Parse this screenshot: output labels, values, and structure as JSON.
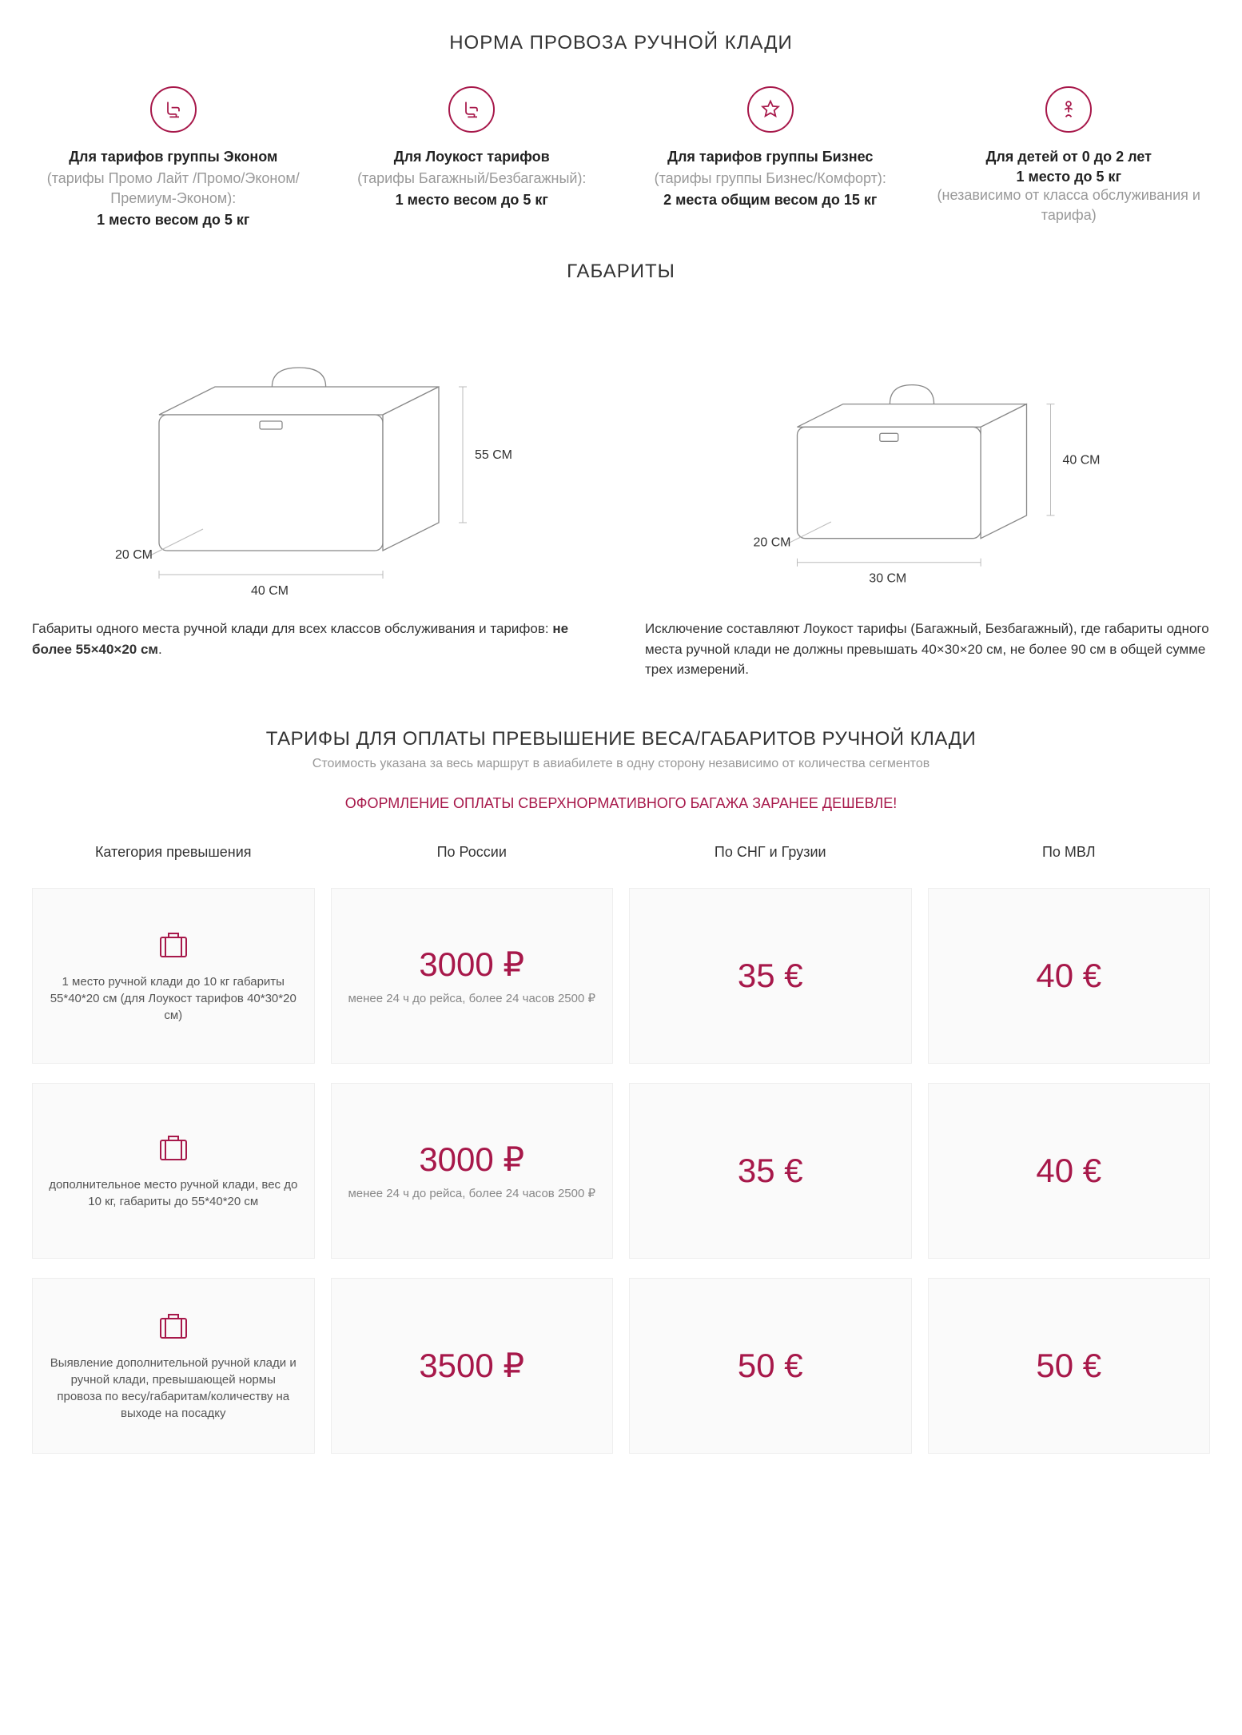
{
  "colors": {
    "accent": "#a7184a",
    "muted": "#999",
    "text": "#333",
    "cell_bg": "#fafafa",
    "cell_border": "#eee"
  },
  "section1": {
    "title": "НОРМА ПРОВОЗА РУЧНОЙ КЛАДИ",
    "tariffs": [
      {
        "icon": "seat",
        "title": "Для тарифов группы Эконом",
        "sub": "(тарифы Промо Лайт /Промо/Эконом/Премиум-Эконом):",
        "bold": "1 место весом до 5 кг"
      },
      {
        "icon": "seat",
        "title": "Для Лоукост тарифов",
        "sub": "(тарифы Багажный/Безбагажный):",
        "bold": "1 место весом до 5 кг"
      },
      {
        "icon": "star",
        "title": "Для тарифов группы Бизнес",
        "sub": "(тарифы группы Бизнес/Комфорт):",
        "bold": "2 места общим весом до 15 кг"
      },
      {
        "icon": "child",
        "title": "Для детей от 0 до 2 лет",
        "sub_after_bold": "(независимо от класса обслуживания и тарифа)",
        "bold": "1 место до 5 кг"
      }
    ]
  },
  "section2": {
    "title": "ГАБАРИТЫ",
    "suitcases": [
      {
        "height": "55 СМ",
        "width": "40 СМ",
        "depth": "20 СМ",
        "caption_pre": "Габариты одного места ручной клади для всех классов обслуживания и тарифов: ",
        "caption_bold": "не более 55×40×20 см",
        "caption_post": "."
      },
      {
        "height": "40 СМ",
        "width": "30 СМ",
        "depth": "20 СМ",
        "caption_pre": "Исключение составляют Лоукост тарифы (Багажный, Безбагажный), где габариты одного места ручной клади не должны превышать 40×30×20 см, не более 90 см в общей сумме трех измерений.",
        "caption_bold": "",
        "caption_post": ""
      }
    ]
  },
  "section3": {
    "title": "ТАРИФЫ ДЛЯ ОПЛАТЫ ПРЕВЫШЕНИЕ ВЕСА/ГАБАРИТОВ РУЧНОЙ КЛАДИ",
    "sub": "Стоимость указана за весь маршрут в авиабилете в одну сторону независимо от количества сегментов",
    "banner": "ОФОРМЛЕНИЕ ОПЛАТЫ СВЕРХНОРМАТИВНОГО БАГАЖА ЗАРАНЕЕ ДЕШЕВЛЕ!",
    "headers": [
      "Категория превышения",
      "По России",
      "По СНГ и Грузии",
      "По МВЛ"
    ],
    "rows": [
      {
        "cat": "1 место ручной клади до 10 кг габариты 55*40*20 см (для Лоукост тарифов 40*30*20 см)",
        "cells": [
          {
            "price": "3000 ₽",
            "note": "менее 24 ч до рейса, более 24 часов 2500 ₽"
          },
          {
            "price": "35 €",
            "note": ""
          },
          {
            "price": "40 €",
            "note": ""
          }
        ]
      },
      {
        "cat": "дополнительное место ручной клади, вес до 10 кг, габариты до 55*40*20 см",
        "cells": [
          {
            "price": "3000 ₽",
            "note": "менее 24 ч до рейса, более 24 часов 2500 ₽"
          },
          {
            "price": "35 €",
            "note": ""
          },
          {
            "price": "40 €",
            "note": ""
          }
        ]
      },
      {
        "cat": "Выявление дополнительной ручной клади и ручной клади, превышающей нормы провоза по весу/габаритам/количеству на выходе на посадку",
        "cells": [
          {
            "price": "3500 ₽",
            "note": ""
          },
          {
            "price": "50 €",
            "note": ""
          },
          {
            "price": "50 €",
            "note": ""
          }
        ]
      }
    ]
  }
}
